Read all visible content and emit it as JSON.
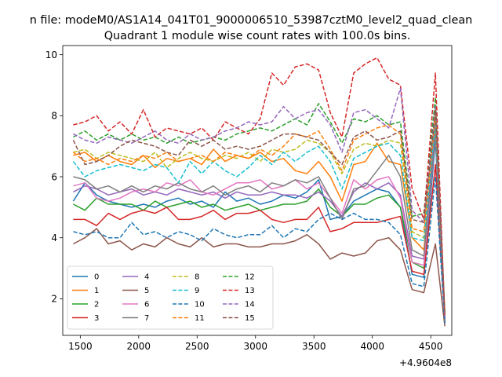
{
  "suptitle": "n file: modeM0/AS1A14_041T01_9000006510_53987cztM0_level2_quad_clean",
  "chart_data": {
    "type": "line",
    "title": "Quadrant 1 module wise count rates with 100.0s bins.",
    "xlabel": "",
    "ylabel": "",
    "x_offset_label": "+4.9604e8",
    "x": [
      1440,
      1540,
      1640,
      1740,
      1840,
      1940,
      2040,
      2140,
      2240,
      2340,
      2440,
      2540,
      2640,
      2740,
      2840,
      2940,
      3040,
      3140,
      3240,
      3340,
      3440,
      3540,
      3640,
      3740,
      3840,
      3940,
      4040,
      4140,
      4240,
      4340,
      4440,
      4540,
      4620
    ],
    "xlim": [
      1350,
      4680
    ],
    "ylim": [
      0.8,
      10.3
    ],
    "xticks": [
      1500,
      2000,
      2500,
      3000,
      3500,
      4000,
      4500
    ],
    "yticks": [
      2,
      4,
      6,
      8,
      10
    ],
    "grid": false,
    "legend": {
      "placement": "lower-left",
      "ncol": 4
    },
    "series": [
      {
        "name": "0",
        "color": "#1f77b4",
        "dash": "solid",
        "values": [
          5.2,
          5.8,
          5.4,
          5.2,
          5.1,
          5.0,
          5.1,
          5.0,
          5.2,
          5.3,
          5.1,
          5.2,
          5.0,
          5.5,
          5.2,
          5.3,
          5.1,
          5.2,
          5.4,
          5.3,
          5.5,
          5.9,
          4.6,
          4.7,
          5.2,
          5.4,
          5.6,
          5.5,
          5.0,
          2.8,
          2.7,
          7.2,
          1.2
        ]
      },
      {
        "name": "1",
        "color": "#ff7f0e",
        "dash": "solid",
        "values": [
          6.7,
          6.8,
          6.5,
          6.7,
          6.5,
          6.4,
          6.7,
          6.3,
          6.6,
          6.5,
          6.6,
          6.4,
          6.9,
          6.5,
          6.7,
          6.6,
          6.8,
          6.5,
          6.6,
          6.2,
          6.1,
          6.5,
          6.0,
          5.2,
          6.4,
          6.5,
          7.1,
          6.5,
          6.4,
          4.0,
          3.6,
          7.5,
          1.5
        ]
      },
      {
        "name": "2",
        "color": "#2ca02c",
        "dash": "solid",
        "values": [
          5.1,
          4.9,
          5.3,
          5.1,
          5.1,
          5.1,
          4.9,
          5.2,
          5.0,
          5.1,
          5.2,
          5.0,
          5.1,
          4.9,
          5.0,
          5.1,
          4.9,
          5.0,
          5.1,
          5.1,
          5.2,
          5.6,
          5.0,
          4.7,
          5.1,
          5.1,
          5.3,
          5.4,
          5.0,
          3.2,
          3.0,
          7.6,
          1.3
        ]
      },
      {
        "name": "3",
        "color": "#d62728",
        "dash": "solid",
        "values": [
          4.6,
          4.6,
          4.4,
          4.8,
          4.6,
          4.8,
          4.9,
          4.8,
          5.0,
          4.6,
          4.6,
          4.7,
          4.9,
          4.6,
          4.8,
          4.8,
          4.9,
          4.6,
          4.5,
          4.6,
          4.6,
          5.0,
          4.2,
          4.3,
          4.5,
          4.5,
          4.5,
          4.6,
          4.7,
          2.9,
          2.8,
          6.4,
          1.3
        ]
      },
      {
        "name": "4",
        "color": "#9467bd",
        "dash": "solid",
        "values": [
          5.5,
          5.7,
          5.6,
          5.4,
          5.5,
          5.6,
          5.4,
          5.5,
          5.4,
          5.6,
          5.5,
          5.4,
          5.5,
          5.3,
          5.5,
          5.4,
          5.4,
          5.5,
          5.4,
          5.4,
          5.3,
          5.5,
          5.2,
          4.7,
          5.5,
          5.8,
          5.6,
          5.8,
          5.4,
          3.4,
          3.3,
          7.8,
          1.3
        ]
      },
      {
        "name": "5",
        "color": "#8c564b",
        "dash": "solid",
        "values": [
          3.8,
          4.0,
          4.3,
          3.8,
          3.9,
          3.6,
          3.8,
          3.7,
          4.0,
          3.8,
          3.7,
          4.0,
          3.7,
          3.8,
          3.8,
          3.7,
          3.7,
          3.8,
          3.8,
          3.9,
          4.1,
          3.8,
          3.3,
          3.5,
          3.4,
          3.5,
          3.9,
          4.0,
          3.6,
          2.3,
          2.2,
          3.8,
          1.1
        ]
      },
      {
        "name": "6",
        "color": "#e377c2",
        "dash": "solid",
        "values": [
          5.7,
          5.8,
          5.3,
          5.2,
          5.3,
          5.5,
          5.6,
          5.5,
          5.8,
          5.7,
          5.9,
          5.5,
          5.4,
          5.6,
          5.8,
          5.8,
          5.9,
          5.6,
          5.7,
          5.9,
          5.6,
          5.8,
          5.3,
          4.8,
          5.9,
          5.6,
          5.9,
          6.0,
          5.3,
          3.2,
          3.1,
          7.4,
          1.4
        ]
      },
      {
        "name": "7",
        "color": "#7f7f7f",
        "dash": "solid",
        "values": [
          6.0,
          5.9,
          5.6,
          5.7,
          5.5,
          5.7,
          5.5,
          5.7,
          5.6,
          5.8,
          5.6,
          5.5,
          5.7,
          5.4,
          5.6,
          5.7,
          5.5,
          5.8,
          5.7,
          5.9,
          5.8,
          6.0,
          5.3,
          4.6,
          5.6,
          5.7,
          6.2,
          6.7,
          6.0,
          3.6,
          3.4,
          7.4,
          1.3
        ]
      },
      {
        "name": "8",
        "color": "#bcbd22",
        "dash": "dashed",
        "values": [
          6.8,
          6.9,
          6.6,
          6.8,
          6.7,
          6.6,
          6.5,
          6.8,
          6.3,
          6.6,
          6.8,
          6.6,
          6.5,
          6.7,
          6.6,
          6.8,
          6.5,
          6.9,
          6.8,
          6.9,
          7.2,
          7.1,
          6.8,
          6.1,
          6.9,
          7.1,
          7.0,
          7.2,
          7.1,
          4.2,
          4.0,
          8.2,
          1.5
        ]
      },
      {
        "name": "9",
        "color": "#17becf",
        "dash": "dashed",
        "values": [
          6.5,
          6.0,
          6.2,
          6.3,
          6.4,
          6.3,
          6.2,
          6.4,
          6.3,
          5.8,
          6.5,
          6.1,
          6.5,
          6.2,
          6.0,
          6.3,
          6.7,
          6.4,
          6.8,
          6.5,
          6.8,
          7.0,
          6.5,
          5.6,
          6.6,
          6.8,
          7.0,
          7.1,
          6.7,
          4.0,
          3.9,
          7.8,
          1.4
        ]
      },
      {
        "name": "10",
        "color": "#1f77b4",
        "dash": "dashed",
        "values": [
          4.2,
          4.1,
          4.2,
          4.0,
          4.0,
          4.5,
          4.1,
          4.2,
          4.0,
          4.2,
          4.1,
          3.9,
          4.3,
          4.1,
          4.0,
          4.1,
          4.1,
          4.4,
          4.0,
          4.3,
          4.2,
          4.6,
          4.8,
          4.6,
          4.8,
          4.6,
          4.6,
          4.5,
          4.1,
          2.5,
          2.4,
          6.0,
          1.2
        ]
      },
      {
        "name": "11",
        "color": "#ff7f0e",
        "dash": "dashed",
        "values": [
          6.8,
          6.5,
          6.6,
          6.4,
          6.6,
          6.5,
          6.7,
          6.6,
          6.8,
          6.5,
          6.6,
          6.7,
          6.5,
          6.8,
          6.7,
          6.6,
          6.9,
          6.7,
          7.0,
          7.4,
          7.3,
          7.5,
          6.9,
          6.2,
          7.2,
          7.4,
          7.6,
          7.7,
          7.4,
          4.3,
          4.2,
          8.0,
          1.6
        ]
      },
      {
        "name": "12",
        "color": "#2ca02c",
        "dash": "dashed",
        "values": [
          7.3,
          7.5,
          7.2,
          7.4,
          7.2,
          7.4,
          7.2,
          7.3,
          7.1,
          7.3,
          7.1,
          7.2,
          7.3,
          7.2,
          7.4,
          7.5,
          7.6,
          7.5,
          7.7,
          7.9,
          7.7,
          8.4,
          7.8,
          7.1,
          7.9,
          7.8,
          8.0,
          7.7,
          7.8,
          4.7,
          4.8,
          8.6,
          1.5
        ]
      },
      {
        "name": "13",
        "color": "#d62728",
        "dash": "dashed",
        "values": [
          7.7,
          7.8,
          8.0,
          7.5,
          7.8,
          7.4,
          8.2,
          7.3,
          7.6,
          7.5,
          7.4,
          7.6,
          7.2,
          7.8,
          7.6,
          7.4,
          7.9,
          9.4,
          9.0,
          9.6,
          9.7,
          9.5,
          8.1,
          7.3,
          9.4,
          9.7,
          9.9,
          9.2,
          9.0,
          5.6,
          4.6,
          9.4,
          1.4
        ]
      },
      {
        "name": "14",
        "color": "#9467bd",
        "dash": "dashed",
        "values": [
          7.4,
          7.2,
          7.1,
          7.3,
          7.2,
          7.1,
          7.3,
          7.5,
          7.2,
          7.1,
          7.4,
          7.2,
          7.3,
          7.5,
          7.6,
          7.8,
          7.7,
          7.8,
          8.3,
          7.9,
          8.1,
          8.2,
          7.7,
          6.8,
          8.1,
          8.2,
          7.9,
          7.6,
          8.9,
          4.9,
          4.5,
          8.3,
          1.4
        ]
      },
      {
        "name": "15",
        "color": "#8c564b",
        "dash": "dashed",
        "values": [
          7.2,
          6.4,
          6.5,
          6.7,
          7.0,
          7.2,
          7.1,
          7.0,
          6.8,
          6.7,
          7.2,
          7.0,
          7.2,
          6.9,
          7.0,
          6.9,
          7.0,
          7.2,
          7.4,
          7.4,
          7.3,
          7.2,
          6.8,
          6.4,
          7.3,
          7.5,
          7.2,
          7.3,
          7.5,
          4.6,
          4.5,
          8.2,
          1.5
        ]
      }
    ]
  }
}
